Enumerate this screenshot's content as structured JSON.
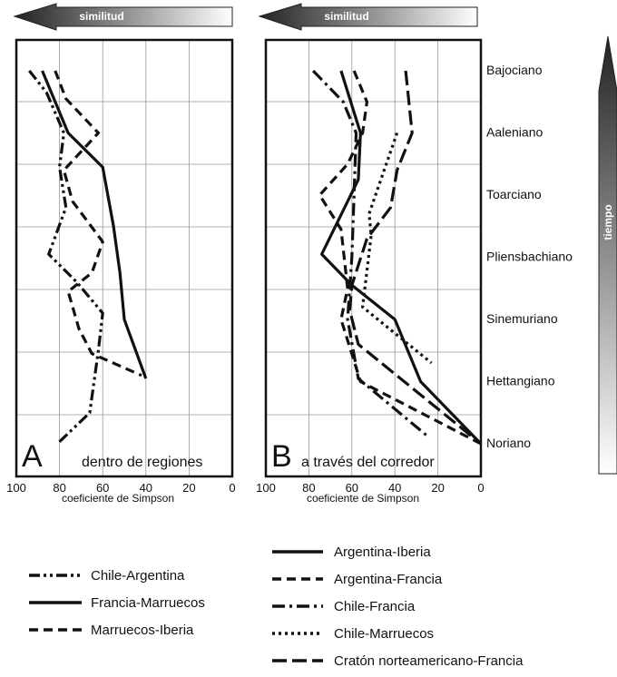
{
  "figure": {
    "similitud_label": "similitud",
    "tiempo_label": "tiempo",
    "stages": [
      "Bajociano",
      "Aaleniano",
      "Toarciano",
      "Pliensbachiano",
      "Sinemuriano",
      "Hettangiano",
      "Noriano"
    ]
  },
  "chart_data": [
    {
      "type": "line",
      "panel_letter": "A",
      "panel_title": "dentro de regiones",
      "xlabel": "coeficiente de Simpson",
      "x_ticks": [
        100,
        80,
        60,
        40,
        20,
        0
      ],
      "xlim": [
        100,
        0
      ],
      "x_reversed": true,
      "categories": [
        "Bajociano",
        "Aaleniano",
        "Toarciano",
        "Pliensbachiano",
        "Sinemuriano",
        "Hettangiano",
        "Noriano"
      ],
      "grid": true,
      "series": [
        {
          "name": "Chile-Argentina",
          "dash": "dash-dot-dot",
          "values": [
            {
              "x": 94,
              "t": 0.0
            },
            {
              "x": 86,
              "t": 0.35
            },
            {
              "x": 78,
              "t": 1.0
            },
            {
              "x": 80,
              "t": 1.55
            },
            {
              "x": 77,
              "t": 2.2
            },
            {
              "x": 85,
              "t": 2.95
            },
            {
              "x": 72,
              "t": 3.4
            },
            {
              "x": 60,
              "t": 3.9
            },
            {
              "x": 62,
              "t": 4.5
            },
            {
              "x": 66,
              "t": 5.5
            },
            {
              "x": 81,
              "t": 6.0
            }
          ]
        },
        {
          "name": "Francia-Marruecos",
          "dash": "solid",
          "values": [
            {
              "x": 88,
              "t": 0.0
            },
            {
              "x": 76,
              "t": 1.0
            },
            {
              "x": 60,
              "t": 1.55
            },
            {
              "x": 55,
              "t": 2.5
            },
            {
              "x": 52,
              "t": 3.25
            },
            {
              "x": 50,
              "t": 4.0
            },
            {
              "x": 40,
              "t": 4.95
            }
          ]
        },
        {
          "name": "Marruecos-Iberia",
          "dash": "dash",
          "values": [
            {
              "x": 82,
              "t": 0.0
            },
            {
              "x": 77,
              "t": 0.45
            },
            {
              "x": 62,
              "t": 1.0
            },
            {
              "x": 78,
              "t": 1.6
            },
            {
              "x": 74,
              "t": 2.1
            },
            {
              "x": 60,
              "t": 2.75
            },
            {
              "x": 65,
              "t": 3.25
            },
            {
              "x": 76,
              "t": 3.55
            },
            {
              "x": 71,
              "t": 4.15
            },
            {
              "x": 65,
              "t": 4.55
            },
            {
              "x": 42,
              "t": 4.9
            }
          ]
        }
      ]
    },
    {
      "type": "line",
      "panel_letter": "B",
      "panel_title": "a través del corredor",
      "xlabel": "coeficiente de Simpson",
      "x_ticks": [
        100,
        80,
        60,
        40,
        20,
        0
      ],
      "xlim": [
        100,
        0
      ],
      "x_reversed": true,
      "categories": [
        "Bajociano",
        "Aaleniano",
        "Toarciano",
        "Pliensbachiano",
        "Sinemuriano",
        "Hettangiano",
        "Noriano"
      ],
      "grid": true,
      "series": [
        {
          "name": "Argentina-Iberia",
          "dash": "solid",
          "values": [
            {
              "x": 65,
              "t": 0.0
            },
            {
              "x": 56,
              "t": 1.0
            },
            {
              "x": 57,
              "t": 1.75
            },
            {
              "x": 74,
              "t": 2.95
            },
            {
              "x": 60,
              "t": 3.45
            },
            {
              "x": 40,
              "t": 4.0
            },
            {
              "x": 28,
              "t": 5.0
            },
            {
              "x": 0,
              "t": 6.0
            }
          ]
        },
        {
          "name": "Argentina-Francia",
          "dash": "dash",
          "values": [
            {
              "x": 59,
              "t": 0.0
            },
            {
              "x": 53,
              "t": 0.5
            },
            {
              "x": 55,
              "t": 1.0
            },
            {
              "x": 62,
              "t": 1.5
            },
            {
              "x": 75,
              "t": 2.0
            },
            {
              "x": 65,
              "t": 2.55
            },
            {
              "x": 62,
              "t": 3.5
            },
            {
              "x": 65,
              "t": 4.0
            },
            {
              "x": 56,
              "t": 5.0
            },
            {
              "x": 0,
              "t": 6.0
            }
          ]
        },
        {
          "name": "Chile-Francia",
          "dash": "dash-dot",
          "values": [
            {
              "x": 78,
              "t": 0.0
            },
            {
              "x": 64,
              "t": 0.5
            },
            {
              "x": 58,
              "t": 1.0
            },
            {
              "x": 59,
              "t": 2.0
            },
            {
              "x": 60,
              "t": 3.0
            },
            {
              "x": 62,
              "t": 4.0
            },
            {
              "x": 57,
              "t": 4.95
            },
            {
              "x": 24,
              "t": 5.9
            }
          ]
        },
        {
          "name": "Chile-Marruecos",
          "dash": "dot",
          "values": [
            {
              "x": 39,
              "t": 1.0
            },
            {
              "x": 43,
              "t": 1.4
            },
            {
              "x": 52,
              "t": 2.3
            },
            {
              "x": 51,
              "t": 2.65
            },
            {
              "x": 55,
              "t": 3.8
            },
            {
              "x": 23,
              "t": 4.7
            }
          ]
        },
        {
          "name": "Cratón norteamericano-Francia",
          "dash": "long-dash",
          "values": [
            {
              "x": 35,
              "t": 0.0
            },
            {
              "x": 32,
              "t": 1.0
            },
            {
              "x": 39,
              "t": 1.6
            },
            {
              "x": 42,
              "t": 2.2
            },
            {
              "x": 53,
              "t": 2.7
            },
            {
              "x": 60,
              "t": 3.45
            },
            {
              "x": 61,
              "t": 3.85
            },
            {
              "x": 57,
              "t": 4.4
            },
            {
              "x": 0,
              "t": 6.0
            }
          ]
        }
      ]
    }
  ],
  "legend_left": [
    "Chile-Argentina",
    "Francia-Marruecos",
    "Marruecos-Iberia"
  ],
  "legend_right": [
    "Argentina-Iberia",
    "Argentina-Francia",
    "Chile-Francia",
    "Chile-Marruecos",
    "Cratón norteamericano-Francia"
  ]
}
